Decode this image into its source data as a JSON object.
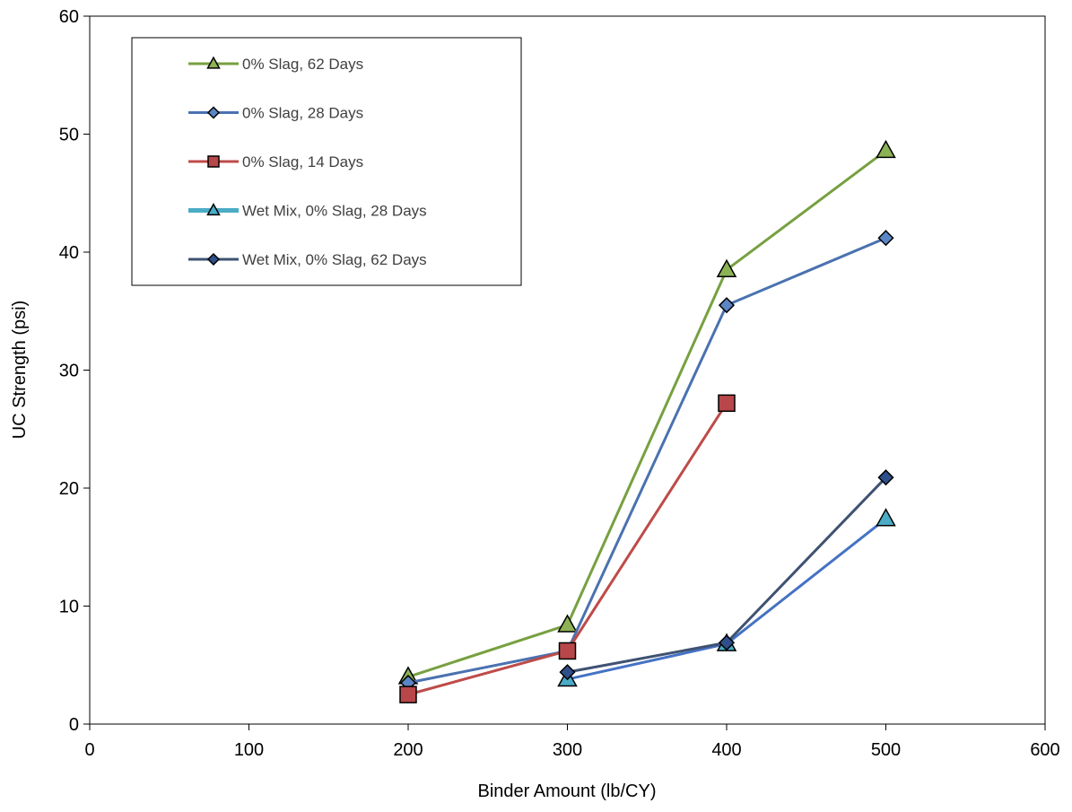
{
  "chart_data": {
    "type": "line",
    "title": "",
    "xlabel": "Binder Amount (lb/CY)",
    "ylabel": "UC Strength (psi)",
    "xlim": [
      0,
      600
    ],
    "ylim": [
      0,
      60
    ],
    "xticks": [
      0,
      100,
      200,
      300,
      400,
      500,
      600
    ],
    "yticks": [
      0,
      10,
      20,
      30,
      40,
      50,
      60
    ],
    "grid": false,
    "legend_position": "top-left",
    "series": [
      {
        "name": "0% Slag, 62 Days",
        "marker": "triangle",
        "color": "#77A040",
        "fill": "#8DB255",
        "points": [
          [
            200,
            4.0
          ],
          [
            300,
            8.4
          ],
          [
            400,
            38.5
          ],
          [
            500,
            48.6
          ]
        ]
      },
      {
        "name": "0% Slag, 28 Days",
        "marker": "diamond",
        "color": "#4A72B0",
        "fill": "#5A86C5",
        "points": [
          [
            200,
            3.5
          ],
          [
            300,
            6.2
          ],
          [
            400,
            35.5
          ],
          [
            500,
            41.2
          ]
        ]
      },
      {
        "name": "0% Slag, 14 Days",
        "marker": "square",
        "color": "#BE4B48",
        "fill": "#B8474A",
        "points": [
          [
            200,
            2.5
          ],
          [
            300,
            6.2
          ],
          [
            400,
            27.2
          ]
        ]
      },
      {
        "name": "Wet Mix, 0% Slag, 28 Days",
        "marker": "triangle",
        "color": "#4BACC6",
        "line_color": "#4472C4",
        "fill": "#4BACC6",
        "points": [
          [
            300,
            3.8
          ],
          [
            400,
            6.8
          ],
          [
            500,
            17.4
          ]
        ]
      },
      {
        "name": "Wet Mix, 0% Slag, 62 Days",
        "marker": "diamond",
        "color": "#3F5272",
        "fill": "#2E4F8A",
        "points": [
          [
            300,
            4.4
          ],
          [
            400,
            6.9
          ],
          [
            500,
            20.9
          ]
        ]
      }
    ]
  }
}
